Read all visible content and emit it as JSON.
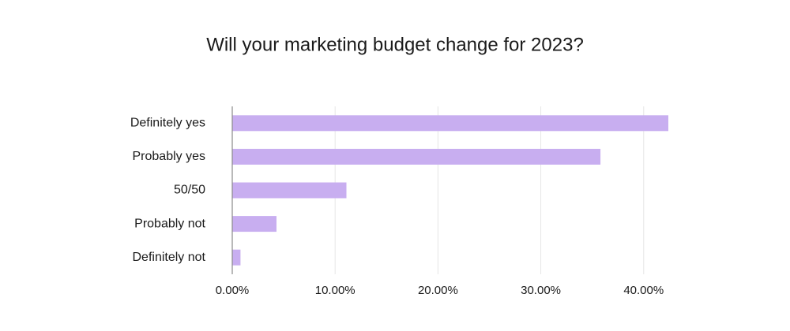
{
  "chart_data": {
    "type": "bar",
    "orientation": "horizontal",
    "title": "Will your marketing budget change for 2023?",
    "categories": [
      "Definitely yes",
      "Probably yes",
      "50/50",
      "Probably not",
      "Definitely not"
    ],
    "values": [
      42.4,
      35.8,
      11.1,
      4.3,
      0.8
    ],
    "color": "#c8aef0",
    "xlim": [
      0,
      42.4
    ],
    "xticks": [
      {
        "value": 0,
        "label": "0.00%"
      },
      {
        "value": 10,
        "label": "10.00%"
      },
      {
        "value": 20,
        "label": "20.00%"
      },
      {
        "value": 30,
        "label": "30.00%"
      },
      {
        "value": 40,
        "label": "40.00%"
      }
    ],
    "grid": true
  }
}
